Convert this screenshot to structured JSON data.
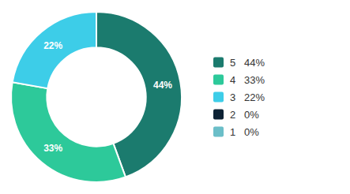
{
  "chart_data": {
    "type": "donut",
    "categories": [
      "5   44%",
      "4   33%",
      "3   22%",
      "2   0%",
      "1   0%"
    ],
    "values": [
      44,
      33,
      22,
      0,
      0
    ],
    "value_labels": [
      "44%",
      "33%",
      "22%",
      null,
      null
    ],
    "colors": [
      "#1b7b6e",
      "#2dc99a",
      "#3dcde8",
      "#0d2235",
      "#6bbec8"
    ],
    "data_labels": true,
    "legend": "right"
  }
}
